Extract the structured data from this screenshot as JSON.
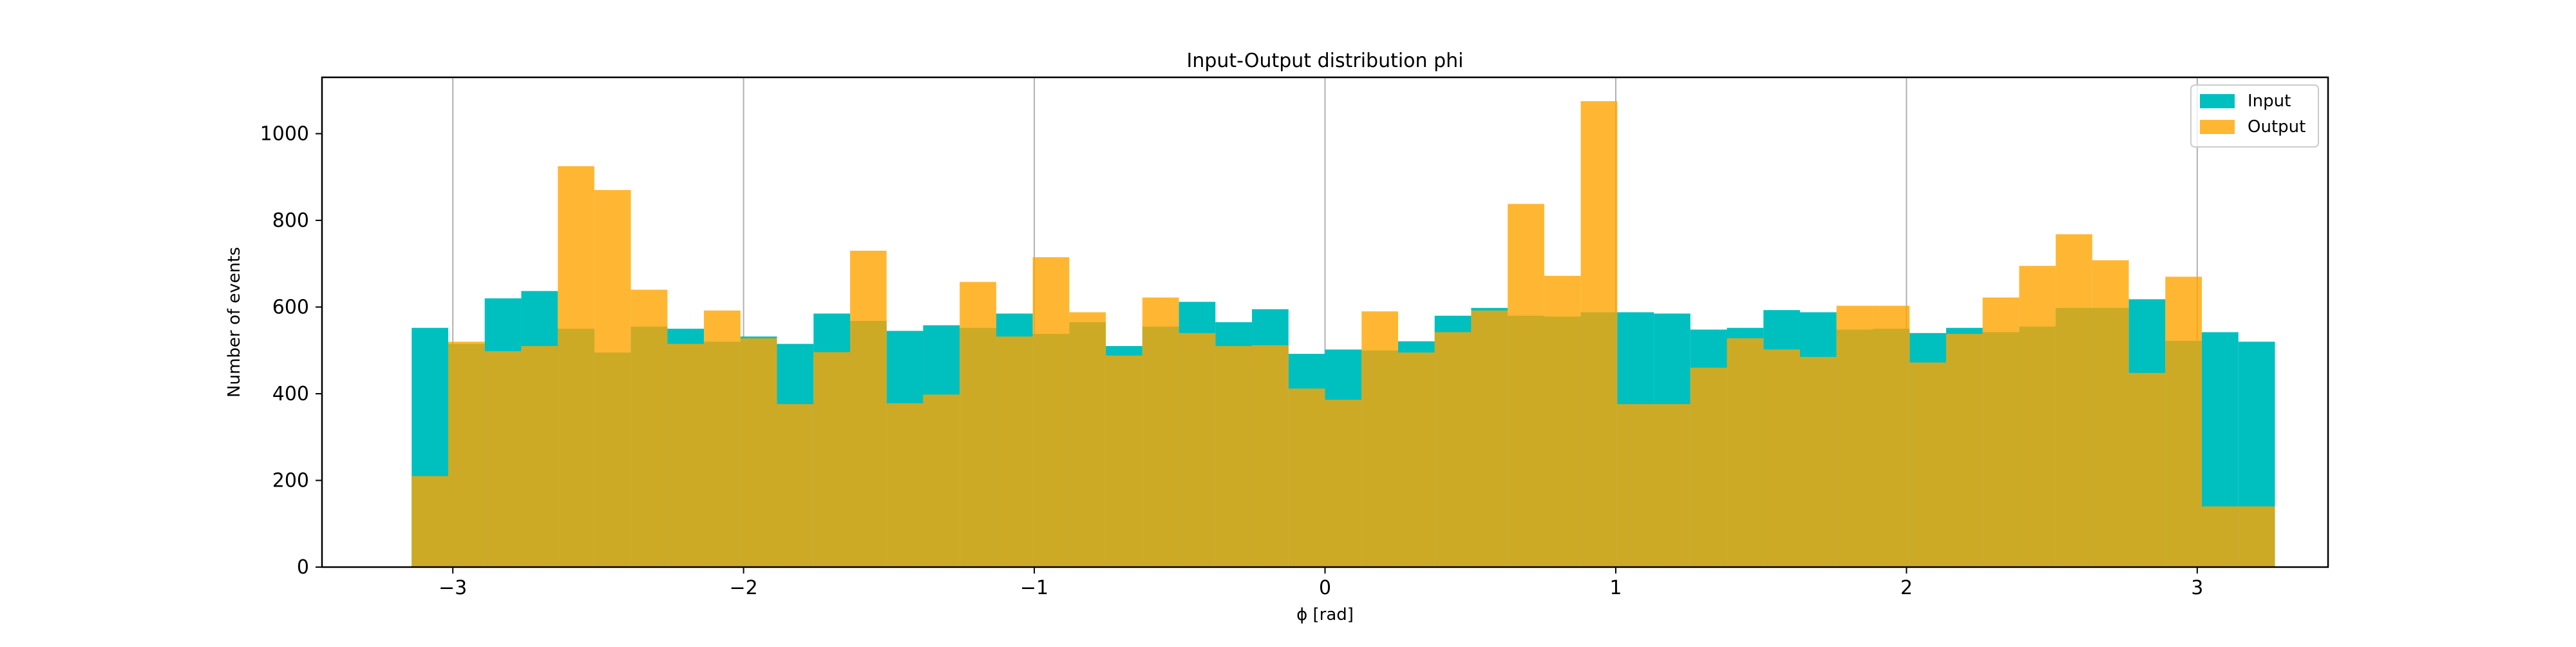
{
  "chart_data": {
    "type": "bar",
    "title": "Input-Output distribution phi",
    "xlabel": "ϕ [rad]",
    "ylabel": "Number of events",
    "xlim": [
      -3.45,
      3.45
    ],
    "ylim": [
      0,
      1130
    ],
    "grid": "x",
    "legend_position": "top-right",
    "x_ticks": [
      -3,
      -2,
      -1,
      0,
      1,
      2,
      3
    ],
    "x_tick_labels": [
      "−3",
      "−2",
      "−1",
      "0",
      "1",
      "2",
      "3"
    ],
    "y_ticks": [
      0,
      200,
      400,
      600,
      800,
      1000
    ],
    "y_tick_labels": [
      "0",
      "200",
      "400",
      "600",
      "800",
      "1000"
    ],
    "bin_edges": [
      -3.1416,
      -3.0159,
      -2.8903,
      -2.7646,
      -2.6389,
      -2.5133,
      -2.3876,
      -2.2619,
      -2.1363,
      -2.0106,
      -1.885,
      -1.7593,
      -1.6336,
      -1.508,
      -1.3823,
      -1.2566,
      -1.131,
      -1.0053,
      -0.8796,
      -0.754,
      -0.6283,
      -0.5027,
      -0.377,
      -0.2513,
      -0.1257,
      0,
      0.1257,
      0.2513,
      0.377,
      0.5027,
      0.6283,
      0.754,
      0.8796,
      1.0053,
      1.131,
      1.2566,
      1.3823,
      1.508,
      1.6336,
      1.7593,
      1.885,
      2.0106,
      2.1363,
      2.2619,
      2.3876,
      2.5133,
      2.6389,
      2.7646,
      2.8903,
      3.0159,
      3.1416
    ],
    "series": [
      {
        "name": "Input",
        "color": "#00bfbf",
        "values": [
          552,
          515,
          620,
          637,
          550,
          495,
          555,
          550,
          520,
          532,
          515,
          585,
          568,
          545,
          558,
          552,
          585,
          538,
          565,
          510,
          555,
          612,
          565,
          595,
          492,
          502,
          500,
          521,
          580,
          598,
          580,
          578,
          588,
          588,
          585,
          548,
          552,
          593,
          588,
          548,
          550,
          540,
          552,
          542,
          555,
          598,
          598,
          618,
          522,
          542,
          520
        ]
      },
      {
        "name": "Output",
        "color": "#ffa500",
        "values": [
          210,
          520,
          498,
          510,
          925,
          870,
          640,
          515,
          592,
          528,
          376,
          496,
          730,
          378,
          398,
          658,
          532,
          715,
          588,
          488,
          622,
          540,
          510,
          512,
          412,
          386,
          590,
          495,
          542,
          592,
          838,
          672,
          1075,
          376,
          376,
          460,
          528,
          502,
          485,
          603,
          603,
          472,
          538,
          622,
          695,
          768,
          708,
          448,
          670,
          140,
          140
        ]
      }
    ]
  }
}
